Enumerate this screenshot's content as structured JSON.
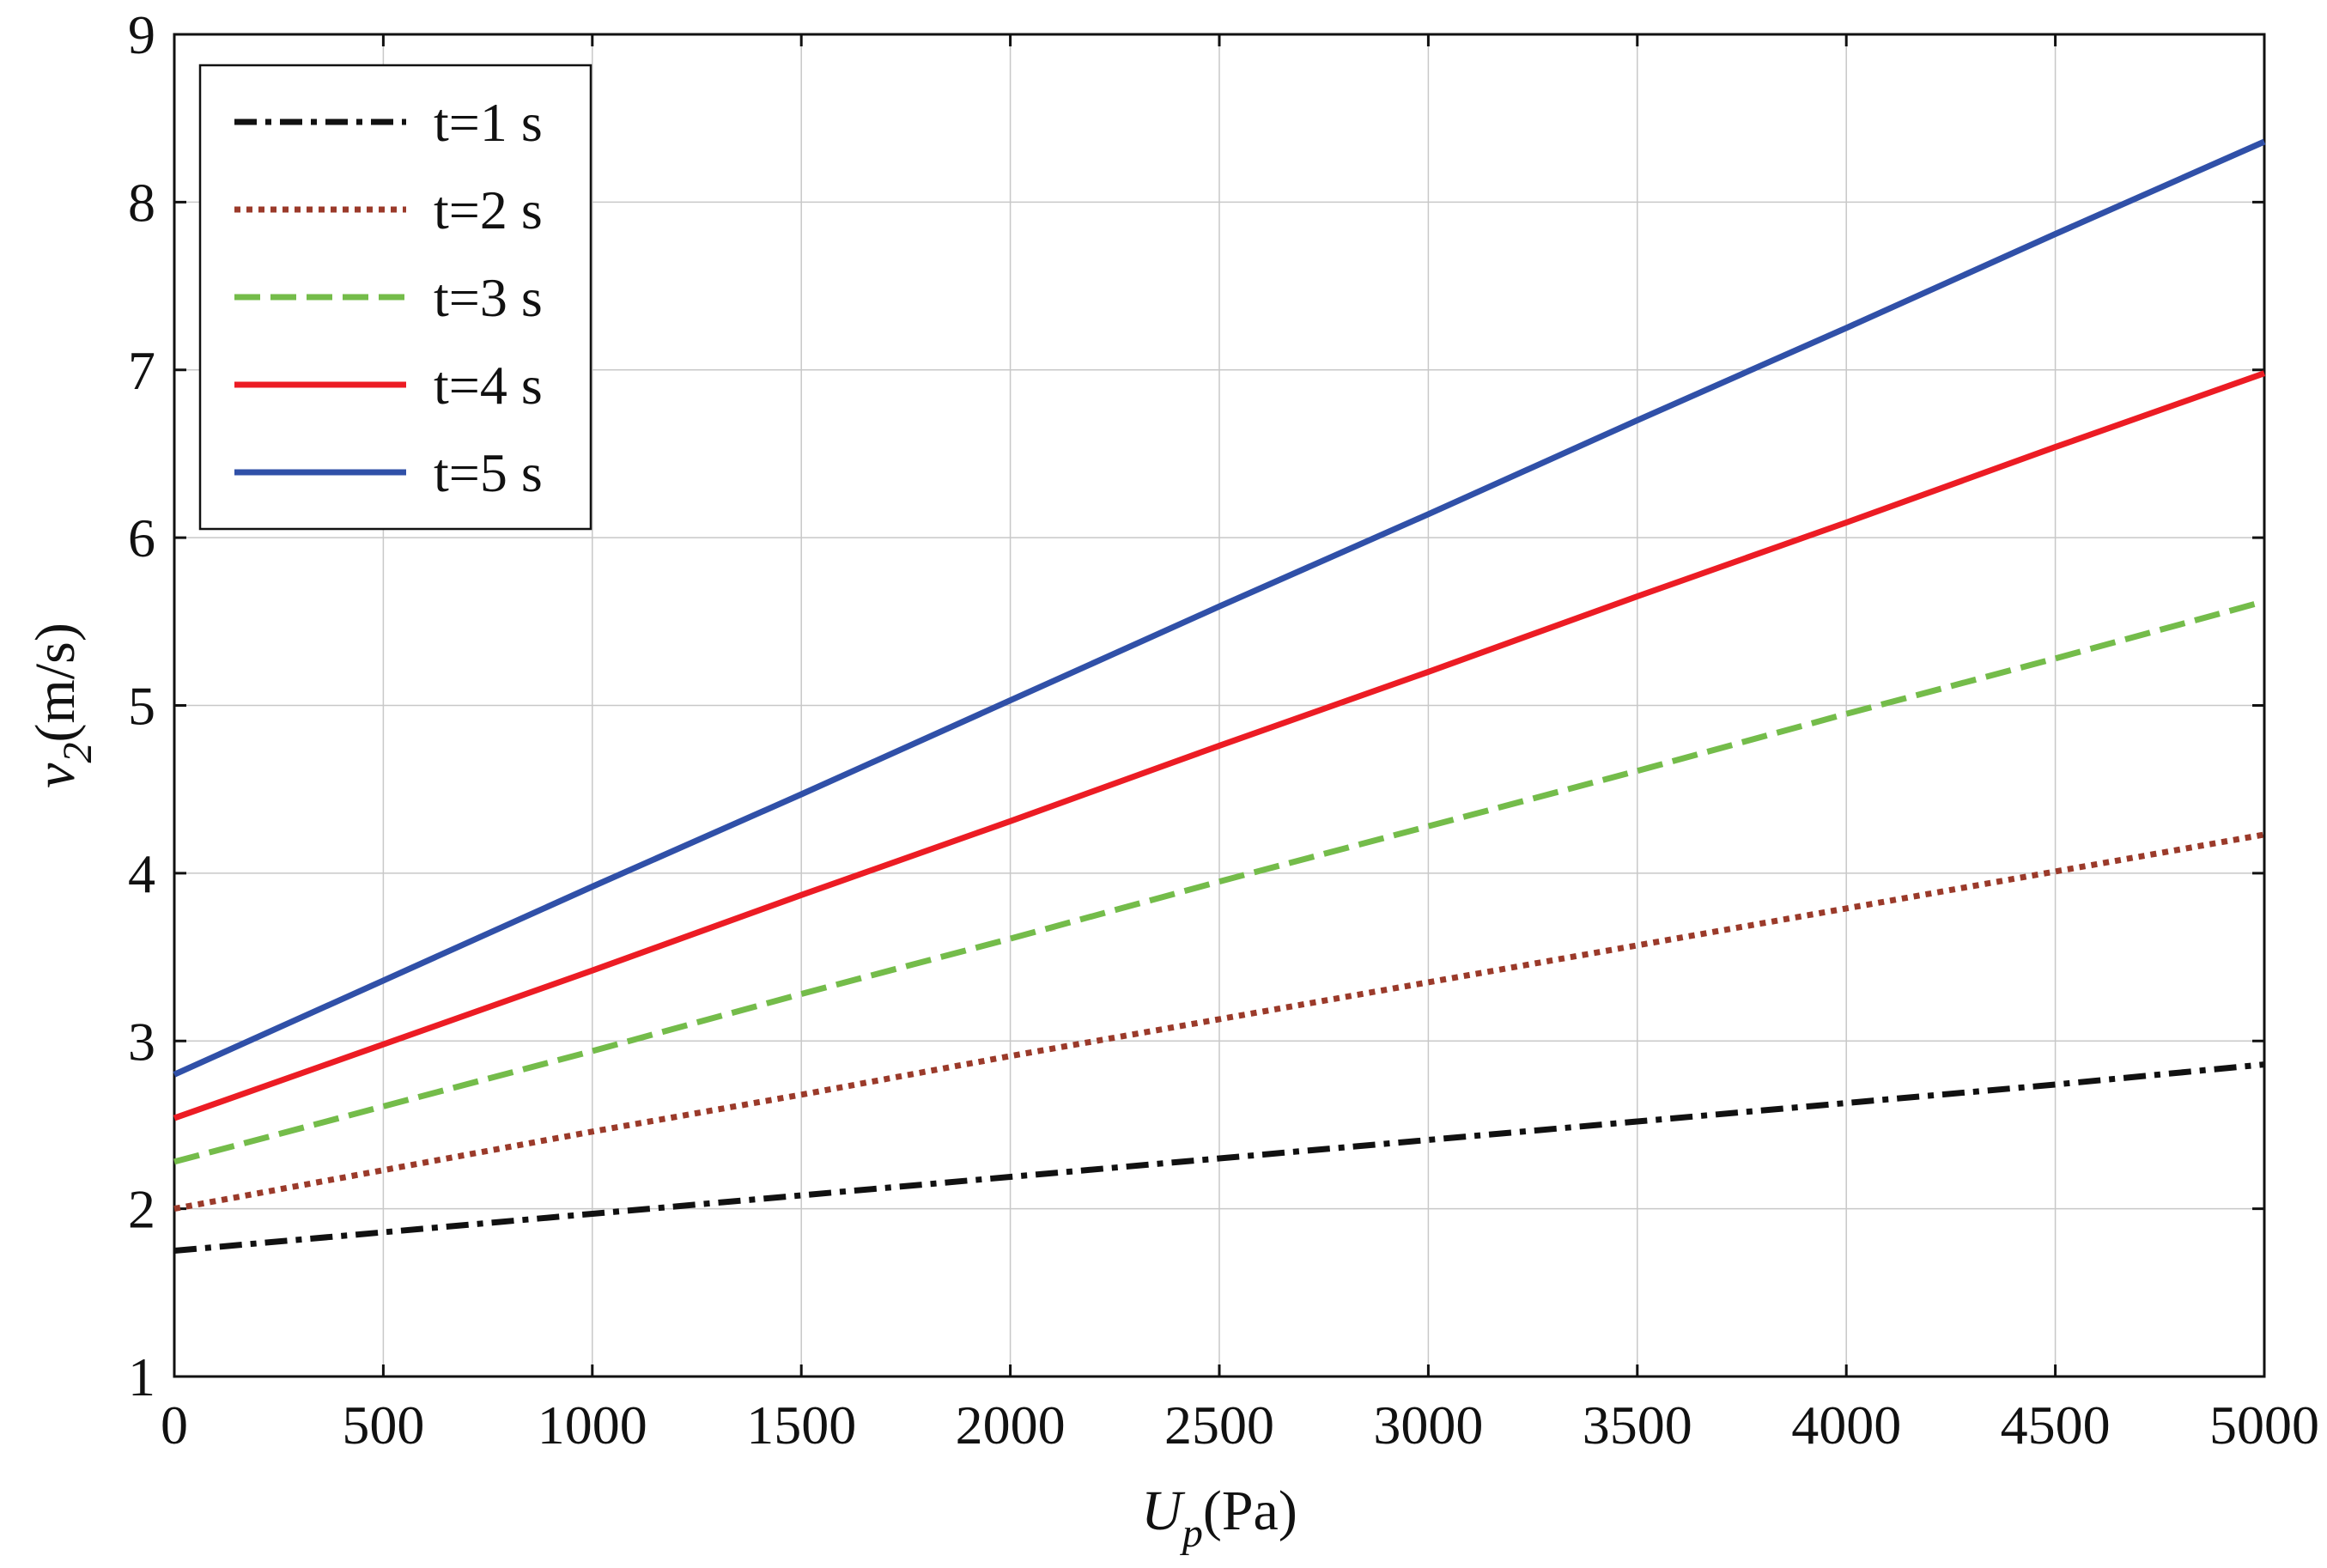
{
  "chart_data": {
    "type": "line",
    "xlabel": {
      "main": "U",
      "sub": "p",
      "unit": "(Pa)"
    },
    "ylabel": {
      "main": "v",
      "sub": "2",
      "unit": "(m/s)"
    },
    "xlim": [
      0,
      5000
    ],
    "ylim": [
      1,
      9
    ],
    "x_ticks": [
      "0",
      "500",
      "1000",
      "1500",
      "2000",
      "2500",
      "3000",
      "3500",
      "4000",
      "4500",
      "5000"
    ],
    "y_ticks": [
      "1",
      "2",
      "3",
      "4",
      "5",
      "6",
      "7",
      "8",
      "9"
    ],
    "grid": true,
    "legend_position": "top-left",
    "x": [
      0,
      500,
      1000,
      1500,
      2000,
      2500,
      3000,
      3500,
      4000,
      4500,
      5000
    ],
    "series": [
      {
        "name": "t=1 s",
        "color": "#111111",
        "style": "dashdot",
        "values": [
          1.75,
          1.86,
          1.97,
          2.08,
          2.19,
          2.3,
          2.41,
          2.52,
          2.63,
          2.74,
          2.86
        ]
      },
      {
        "name": "t=2 s",
        "color": "#9b3a2a",
        "style": "dotted",
        "values": [
          2.0,
          2.23,
          2.46,
          2.68,
          2.91,
          3.13,
          3.35,
          3.57,
          3.79,
          4.01,
          4.23
        ]
      },
      {
        "name": "t=3 s",
        "color": "#74bc4a",
        "style": "dashed",
        "values": [
          2.28,
          2.61,
          2.94,
          3.28,
          3.61,
          3.95,
          4.28,
          4.61,
          4.95,
          5.28,
          5.62
        ]
      },
      {
        "name": "t=4 s",
        "color": "#ec1c24",
        "style": "solid",
        "values": [
          2.54,
          2.98,
          3.42,
          3.87,
          4.31,
          4.76,
          5.2,
          5.65,
          6.09,
          6.54,
          6.98
        ]
      },
      {
        "name": "t=5 s",
        "color": "#3050a8",
        "style": "solid",
        "values": [
          2.8,
          3.36,
          3.92,
          4.47,
          5.03,
          5.59,
          6.14,
          6.7,
          7.25,
          7.81,
          8.36
        ]
      }
    ]
  }
}
